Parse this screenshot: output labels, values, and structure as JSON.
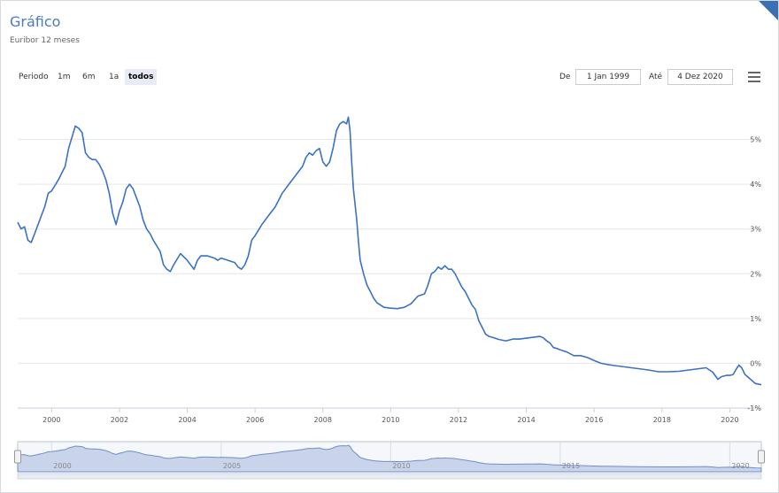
{
  "header": {
    "title": "Gráfico",
    "subtitle": "Euribor 12 meses"
  },
  "range_selector": {
    "label": "Periodo",
    "buttons": [
      "1m",
      "6m",
      "1a",
      "todos"
    ],
    "active": "todos",
    "from_label": "De",
    "from_value": "1 Jan 1999",
    "to_label": "Até",
    "to_value": "4 Dez 2020"
  },
  "icons": {
    "menu": "hamburger-menu-icon"
  },
  "colors": {
    "line": "#3a72c4",
    "navigator_fill": "#c9d4ea",
    "accent": "#4a7bbf"
  },
  "chart_data": {
    "type": "line",
    "xlim": [
      1999,
      2020.93
    ],
    "ylim": [
      -1,
      6
    ],
    "x_ticks": [
      "2000",
      "2002",
      "2004",
      "2006",
      "2008",
      "2010",
      "2012",
      "2014",
      "2016",
      "2018",
      "2020"
    ],
    "y_ticks": [
      "-1%",
      "0%",
      "1%",
      "2%",
      "3%",
      "4%",
      "5%"
    ],
    "grid": true,
    "series": [
      {
        "points": [
          [
            1999.0,
            3.15
          ],
          [
            1999.1,
            3.0
          ],
          [
            1999.2,
            3.05
          ],
          [
            1999.3,
            2.75
          ],
          [
            1999.4,
            2.7
          ],
          [
            1999.5,
            2.9
          ],
          [
            1999.6,
            3.1
          ],
          [
            1999.7,
            3.3
          ],
          [
            1999.8,
            3.5
          ],
          [
            1999.9,
            3.8
          ],
          [
            2000.0,
            3.85
          ],
          [
            2000.2,
            4.1
          ],
          [
            2000.4,
            4.4
          ],
          [
            2000.5,
            4.8
          ],
          [
            2000.6,
            5.05
          ],
          [
            2000.7,
            5.3
          ],
          [
            2000.8,
            5.25
          ],
          [
            2000.9,
            5.15
          ],
          [
            2001.0,
            4.7
          ],
          [
            2001.1,
            4.6
          ],
          [
            2001.2,
            4.55
          ],
          [
            2001.3,
            4.55
          ],
          [
            2001.4,
            4.45
          ],
          [
            2001.5,
            4.3
          ],
          [
            2001.6,
            4.1
          ],
          [
            2001.7,
            3.8
          ],
          [
            2001.8,
            3.35
          ],
          [
            2001.9,
            3.1
          ],
          [
            2002.0,
            3.4
          ],
          [
            2002.1,
            3.6
          ],
          [
            2002.2,
            3.9
          ],
          [
            2002.3,
            4.0
          ],
          [
            2002.4,
            3.9
          ],
          [
            2002.5,
            3.7
          ],
          [
            2002.6,
            3.5
          ],
          [
            2002.7,
            3.2
          ],
          [
            2002.8,
            3.0
          ],
          [
            2002.9,
            2.9
          ],
          [
            2003.0,
            2.75
          ],
          [
            2003.2,
            2.5
          ],
          [
            2003.3,
            2.2
          ],
          [
            2003.4,
            2.1
          ],
          [
            2003.5,
            2.05
          ],
          [
            2003.6,
            2.2
          ],
          [
            2003.8,
            2.45
          ],
          [
            2004.0,
            2.3
          ],
          [
            2004.1,
            2.2
          ],
          [
            2004.2,
            2.1
          ],
          [
            2004.3,
            2.3
          ],
          [
            2004.4,
            2.4
          ],
          [
            2004.6,
            2.4
          ],
          [
            2004.8,
            2.35
          ],
          [
            2004.9,
            2.3
          ],
          [
            2005.0,
            2.35
          ],
          [
            2005.2,
            2.3
          ],
          [
            2005.4,
            2.25
          ],
          [
            2005.5,
            2.15
          ],
          [
            2005.6,
            2.1
          ],
          [
            2005.7,
            2.2
          ],
          [
            2005.8,
            2.4
          ],
          [
            2005.9,
            2.75
          ],
          [
            2006.0,
            2.85
          ],
          [
            2006.2,
            3.1
          ],
          [
            2006.4,
            3.3
          ],
          [
            2006.6,
            3.5
          ],
          [
            2006.8,
            3.8
          ],
          [
            2007.0,
            4.0
          ],
          [
            2007.2,
            4.2
          ],
          [
            2007.4,
            4.4
          ],
          [
            2007.5,
            4.6
          ],
          [
            2007.6,
            4.7
          ],
          [
            2007.7,
            4.65
          ],
          [
            2007.8,
            4.75
          ],
          [
            2007.9,
            4.8
          ],
          [
            2008.0,
            4.5
          ],
          [
            2008.1,
            4.4
          ],
          [
            2008.2,
            4.5
          ],
          [
            2008.3,
            4.8
          ],
          [
            2008.4,
            5.2
          ],
          [
            2008.5,
            5.35
          ],
          [
            2008.6,
            5.4
          ],
          [
            2008.7,
            5.35
          ],
          [
            2008.75,
            5.5
          ],
          [
            2008.8,
            5.2
          ],
          [
            2008.85,
            4.5
          ],
          [
            2008.9,
            3.9
          ],
          [
            2009.0,
            3.2
          ],
          [
            2009.05,
            2.7
          ],
          [
            2009.1,
            2.3
          ],
          [
            2009.2,
            2.0
          ],
          [
            2009.3,
            1.75
          ],
          [
            2009.4,
            1.6
          ],
          [
            2009.5,
            1.45
          ],
          [
            2009.6,
            1.35
          ],
          [
            2009.8,
            1.25
          ],
          [
            2010.0,
            1.23
          ],
          [
            2010.2,
            1.22
          ],
          [
            2010.4,
            1.25
          ],
          [
            2010.6,
            1.33
          ],
          [
            2010.8,
            1.5
          ],
          [
            2011.0,
            1.55
          ],
          [
            2011.1,
            1.75
          ],
          [
            2011.2,
            2.0
          ],
          [
            2011.3,
            2.05
          ],
          [
            2011.4,
            2.15
          ],
          [
            2011.5,
            2.1
          ],
          [
            2011.6,
            2.18
          ],
          [
            2011.7,
            2.1
          ],
          [
            2011.8,
            2.1
          ],
          [
            2011.9,
            2.0
          ],
          [
            2012.0,
            1.85
          ],
          [
            2012.1,
            1.7
          ],
          [
            2012.2,
            1.6
          ],
          [
            2012.3,
            1.45
          ],
          [
            2012.4,
            1.3
          ],
          [
            2012.5,
            1.2
          ],
          [
            2012.6,
            0.95
          ],
          [
            2012.7,
            0.8
          ],
          [
            2012.8,
            0.65
          ],
          [
            2012.9,
            0.6
          ],
          [
            2013.0,
            0.58
          ],
          [
            2013.2,
            0.53
          ],
          [
            2013.4,
            0.5
          ],
          [
            2013.6,
            0.54
          ],
          [
            2013.8,
            0.54
          ],
          [
            2014.0,
            0.56
          ],
          [
            2014.2,
            0.58
          ],
          [
            2014.4,
            0.6
          ],
          [
            2014.5,
            0.57
          ],
          [
            2014.6,
            0.5
          ],
          [
            2014.7,
            0.45
          ],
          [
            2014.8,
            0.35
          ],
          [
            2014.9,
            0.33
          ],
          [
            2015.0,
            0.3
          ],
          [
            2015.2,
            0.25
          ],
          [
            2015.4,
            0.17
          ],
          [
            2015.6,
            0.17
          ],
          [
            2015.8,
            0.13
          ],
          [
            2016.0,
            0.06
          ],
          [
            2016.2,
            0.0
          ],
          [
            2016.4,
            -0.03
          ],
          [
            2016.6,
            -0.05
          ],
          [
            2016.8,
            -0.07
          ],
          [
            2017.0,
            -0.09
          ],
          [
            2017.3,
            -0.12
          ],
          [
            2017.6,
            -0.15
          ],
          [
            2017.9,
            -0.19
          ],
          [
            2018.2,
            -0.19
          ],
          [
            2018.5,
            -0.18
          ],
          [
            2018.8,
            -0.15
          ],
          [
            2019.1,
            -0.12
          ],
          [
            2019.3,
            -0.1
          ],
          [
            2019.5,
            -0.2
          ],
          [
            2019.65,
            -0.36
          ],
          [
            2019.75,
            -0.3
          ],
          [
            2019.9,
            -0.27
          ],
          [
            2020.0,
            -0.27
          ],
          [
            2020.1,
            -0.25
          ],
          [
            2020.2,
            -0.12
          ],
          [
            2020.27,
            -0.04
          ],
          [
            2020.35,
            -0.1
          ],
          [
            2020.45,
            -0.25
          ],
          [
            2020.6,
            -0.35
          ],
          [
            2020.75,
            -0.45
          ],
          [
            2020.93,
            -0.48
          ]
        ]
      }
    ],
    "navigator": {
      "xlim": [
        1999,
        2020.93
      ],
      "x_ticks": [
        "2000",
        "2005",
        "2010",
        "2015",
        "2020"
      ]
    }
  }
}
